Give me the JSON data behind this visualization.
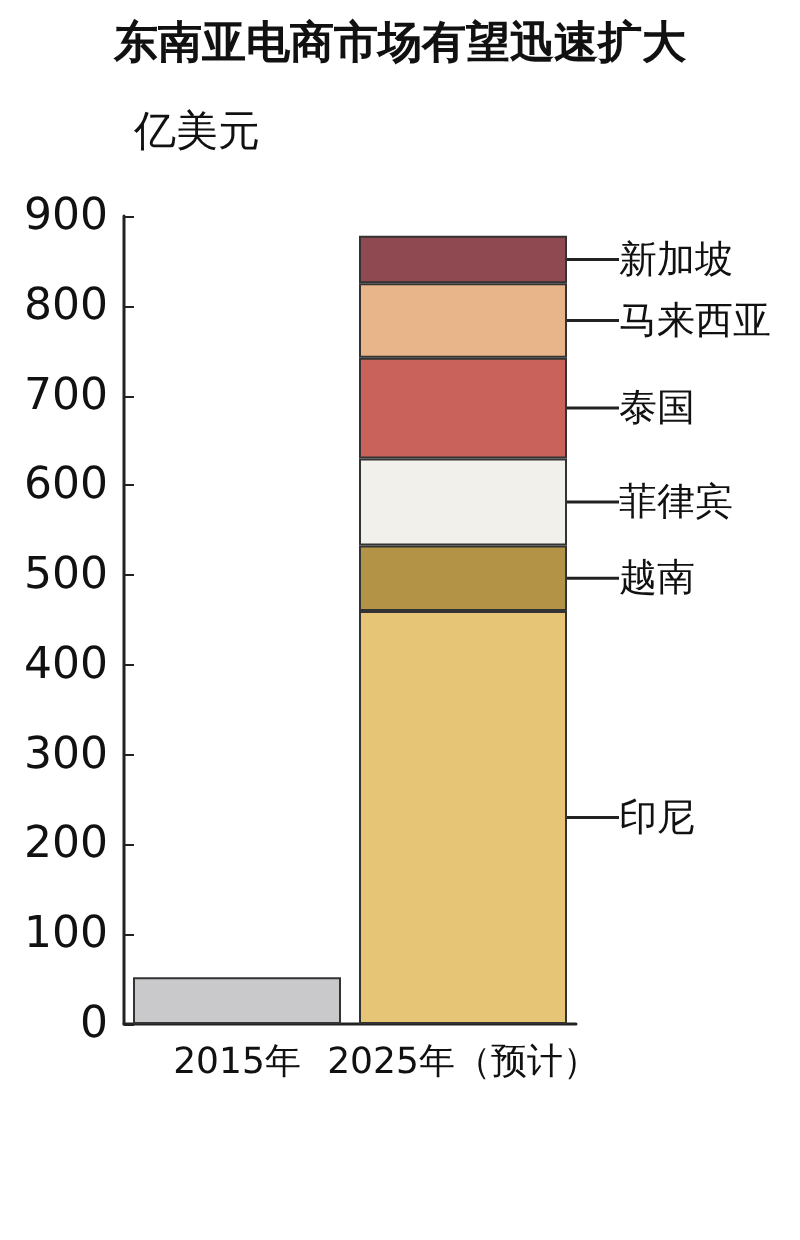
{
  "chart_data": {
    "type": "bar",
    "title": "东南亚电商市场有望迅速扩大",
    "ylabel": "亿美元",
    "categories": [
      "2015年",
      "2025年（预计）"
    ],
    "stacked": true,
    "ylim": [
      0,
      900
    ],
    "yticks": [
      0,
      100,
      200,
      300,
      400,
      500,
      600,
      700,
      800,
      900
    ],
    "grid": false,
    "legend": false,
    "series": [
      {
        "color": "#c9c9cb",
        "values": [
          52,
          null
        ]
      },
      {
        "name": "印尼",
        "color": "#e6c676",
        "values": [
          null,
          460
        ]
      },
      {
        "name": "越南",
        "color": "#b39446",
        "values": [
          null,
          73
        ]
      },
      {
        "name": "菲律宾",
        "color": "#f2f0ea",
        "values": [
          null,
          97
        ]
      },
      {
        "name": "泰国",
        "color": "#c8625a",
        "values": [
          null,
          112
        ]
      },
      {
        "name": "马来西亚",
        "color": "#e8b48a",
        "values": [
          null,
          83
        ]
      },
      {
        "name": "新加坡",
        "color": "#8e4a50",
        "values": [
          null,
          53
        ]
      }
    ]
  }
}
